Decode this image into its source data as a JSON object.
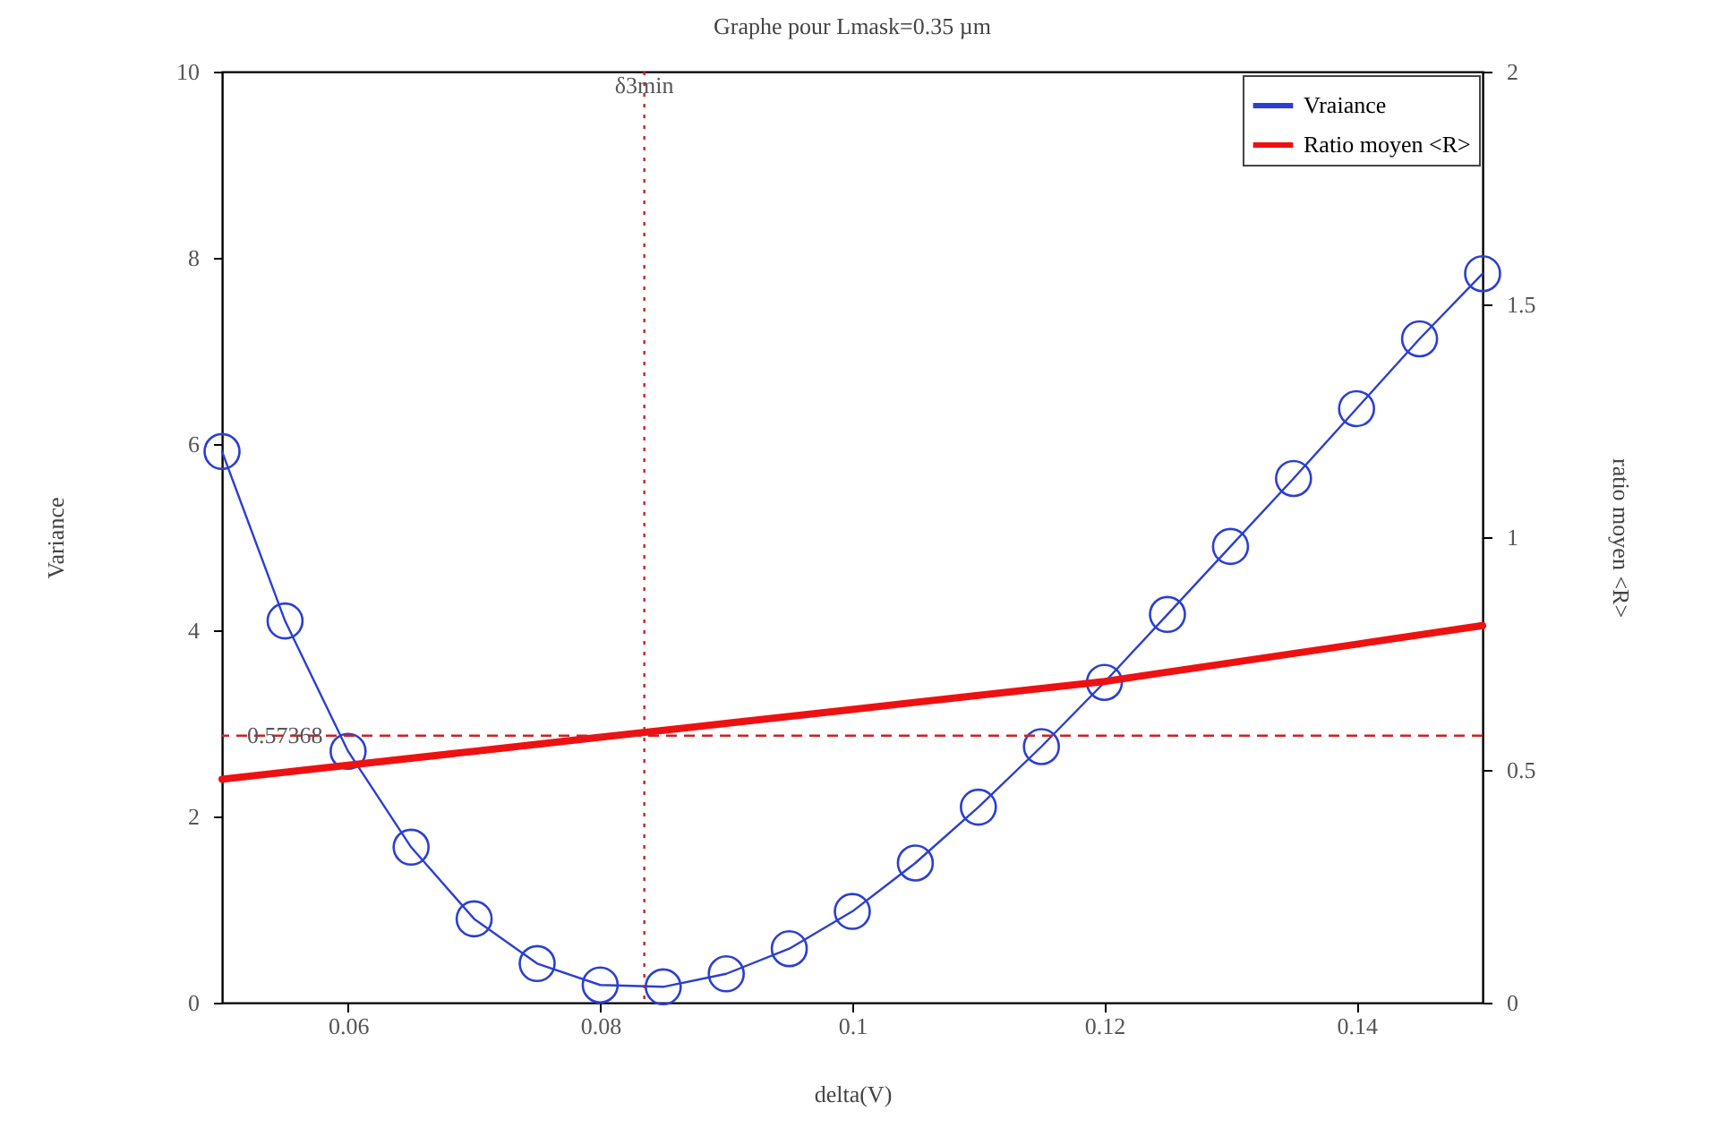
{
  "chart_data": {
    "type": "line",
    "title": "Graphe pour Lmask=0.35 µm",
    "xlabel": "delta(V)",
    "ylabel": "Variance",
    "y2label": "ratio moyen <R>",
    "series": [
      {
        "name": "Vraiance",
        "color": "#2b3fd0",
        "marker": "circle",
        "x": [
          0.05,
          0.055,
          0.06,
          0.065,
          0.07,
          0.075,
          0.08,
          0.085,
          0.09,
          0.095,
          0.1,
          0.105,
          0.11,
          0.115,
          0.12,
          0.125,
          0.13,
          0.135,
          0.14,
          0.145,
          0.15
        ],
        "values": [
          5.92,
          4.1,
          2.7,
          1.67,
          0.9,
          0.42,
          0.19,
          0.17,
          0.31,
          0.58,
          0.98,
          1.5,
          2.1,
          2.75,
          3.44,
          4.17,
          4.9,
          5.63,
          6.38,
          7.13,
          7.83
        ]
      },
      {
        "name": "Ratio moyen <R>",
        "color": "#ee1111",
        "marker": "none",
        "axis": "y2",
        "x": [
          0.05,
          0.06,
          0.07,
          0.08,
          0.09,
          0.1,
          0.11,
          0.12,
          0.13,
          0.14,
          0.15
        ],
        "values": [
          0.48,
          0.51,
          0.54,
          0.57,
          0.6,
          0.63,
          0.66,
          0.69,
          0.73,
          0.77,
          0.81
        ]
      }
    ],
    "xlim": [
      0.05,
      0.15
    ],
    "xticks": [
      0.06,
      0.08,
      0.1,
      0.12,
      0.14
    ],
    "ylim": [
      0,
      10
    ],
    "yticks": [
      0,
      2,
      4,
      6,
      8,
      10
    ],
    "y2lim": [
      0,
      2
    ],
    "y2ticks": [
      0,
      0.5,
      1,
      1.5,
      2
    ],
    "ref_lines": [
      {
        "axis": "x",
        "value": 0.0835,
        "label": "δ3min",
        "color": "#cc2222",
        "line_style": "dotted"
      },
      {
        "axis": "y2",
        "value": 0.57368,
        "label": "0.57368",
        "color": "#cc2222",
        "line_style": "dashed"
      }
    ],
    "grid": false,
    "legend": "top right"
  }
}
